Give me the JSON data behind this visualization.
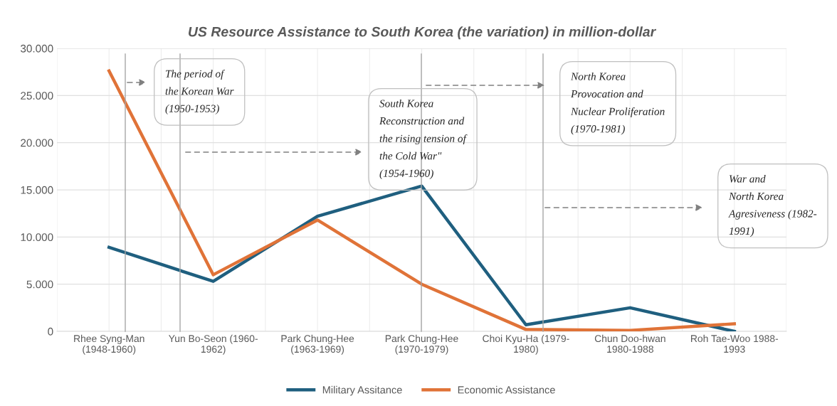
{
  "chart_data": {
    "type": "line",
    "title": "US Resource Assistance to South Korea (the variation) in million-dollar",
    "categories": [
      "Rhee Syng-Man\n(1948-1960)",
      "Yun Bo-Seon (1960-\n1962)",
      "Park Chung-Hee\n(1963-1969)",
      "Park Chung-Hee\n(1970-1979)",
      "Choi Kyu-Ha (1979-\n1980)",
      "Chun Doo-hwan\n1980-1988",
      "Roh Tae-Woo 1988-\n1993"
    ],
    "series": [
      {
        "name": "Military Assitance",
        "color": "#1f5f7f",
        "values": [
          8900,
          5300,
          12200,
          15400,
          700,
          2500,
          0
        ]
      },
      {
        "name": "Economic Assistance",
        "color": "#e07338",
        "values": [
          27600,
          6000,
          11800,
          5000,
          200,
          100,
          800
        ]
      }
    ],
    "ylim": [
      0,
      30000
    ],
    "yticks": [
      {
        "value": 0,
        "label": "0"
      },
      {
        "value": 5000,
        "label": "5.000"
      },
      {
        "value": 10000,
        "label": "10.000"
      },
      {
        "value": 15000,
        "label": "15.000"
      },
      {
        "value": 20000,
        "label": "20.000"
      },
      {
        "value": 25000,
        "label": "25.000"
      },
      {
        "value": 30000,
        "label": "30.000"
      }
    ],
    "annotations": [
      "The period of\nthe Korean War\n(1950-1953)",
      "South Korea\nReconstruction and\nthe rising tension of\nthe Cold War\"\n(1954-1960)",
      "North Korea\nProvocation and\nNuclear Proliferation\n(1970-1981)",
      "War and\nNorth Korea\nAgresiveness (1982-\n1991)"
    ],
    "grid": true,
    "legend": "bottom",
    "marker": "none",
    "line_style": "solid"
  }
}
